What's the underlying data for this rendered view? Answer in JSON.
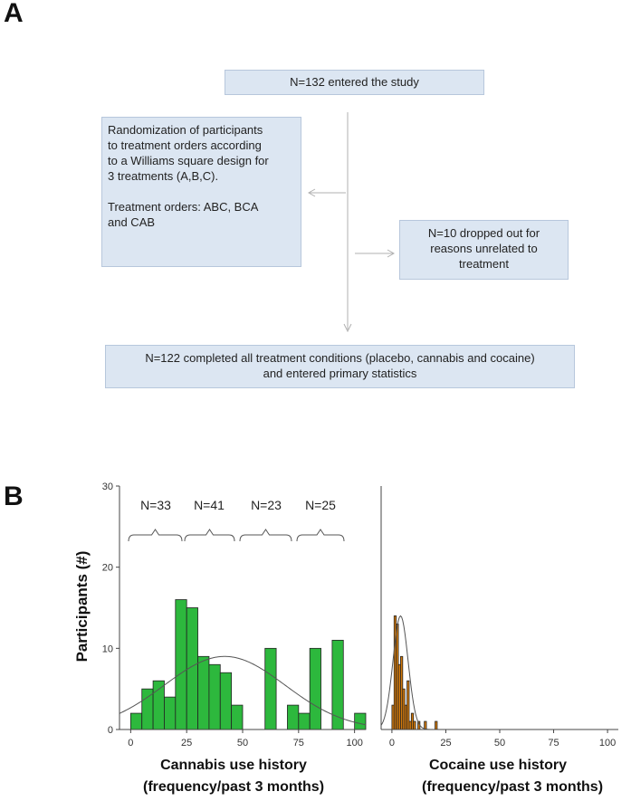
{
  "panel_a": {
    "label": "A",
    "entered": "N=132 entered the study",
    "randomization_line1": "Randomization of participants",
    "randomization_line2": "to treatment orders according",
    "randomization_line3": "to a Williams square design for",
    "randomization_line4": "3 treatments (A,B,C).",
    "orders_line1": "Treatment orders: ABC, BCA",
    "orders_line2": "and CAB",
    "dropout_line1": "N=10 dropped out for",
    "dropout_line2": "reasons unrelated to",
    "dropout_line3": "treatment",
    "completed_line1": "N=122 completed all treatment conditions (placebo, cannabis and cocaine)",
    "completed_line2": "and entered primary statistics"
  },
  "panel_b": {
    "label": "B",
    "ylabel": "Participants (#)",
    "bar_color_cannabis": "#2db83d",
    "bar_color_cocaine": "#d47a0b",
    "brackets": [
      "N=33",
      "N=41",
      "N=23",
      "N=25"
    ]
  },
  "chart_data": [
    {
      "type": "bar",
      "title": "",
      "xlabel_line1": "Cannabis use history",
      "xlabel_line2": "(frequency/past 3 months)",
      "ylabel": "Participants (#)",
      "xlim": [
        -5,
        105
      ],
      "ylim": [
        0,
        30
      ],
      "xticks": [
        0,
        25,
        50,
        75,
        100
      ],
      "yticks": [
        0,
        10,
        20,
        30
      ],
      "bin_width": 5,
      "bins": [
        {
          "x": 0,
          "value": 2
        },
        {
          "x": 5,
          "value": 5
        },
        {
          "x": 10,
          "value": 6
        },
        {
          "x": 15,
          "value": 4
        },
        {
          "x": 20,
          "value": 16
        },
        {
          "x": 25,
          "value": 15
        },
        {
          "x": 30,
          "value": 9
        },
        {
          "x": 35,
          "value": 8
        },
        {
          "x": 40,
          "value": 7
        },
        {
          "x": 45,
          "value": 3
        },
        {
          "x": 60,
          "value": 10
        },
        {
          "x": 70,
          "value": 3
        },
        {
          "x": 75,
          "value": 2
        },
        {
          "x": 80,
          "value": 10
        },
        {
          "x": 90,
          "value": 11
        },
        {
          "x": 100,
          "value": 2
        }
      ],
      "normal_curve": {
        "mean": 42,
        "sd": 27,
        "peak": 9
      }
    },
    {
      "type": "bar",
      "title": "",
      "xlabel_line1": "Cocaine use history",
      "xlabel_line2": "(frequency/past 3 months)",
      "xlim": [
        -5,
        105
      ],
      "ylim": [
        0,
        30
      ],
      "xticks": [
        0,
        25,
        50,
        75,
        100
      ],
      "bin_width": 1,
      "bins": [
        {
          "x": 0,
          "value": 3
        },
        {
          "x": 1,
          "value": 14
        },
        {
          "x": 2,
          "value": 13
        },
        {
          "x": 3,
          "value": 8
        },
        {
          "x": 4,
          "value": 9
        },
        {
          "x": 5,
          "value": 5
        },
        {
          "x": 6,
          "value": 3
        },
        {
          "x": 7,
          "value": 6
        },
        {
          "x": 8,
          "value": 1
        },
        {
          "x": 9,
          "value": 2
        },
        {
          "x": 10,
          "value": 1
        },
        {
          "x": 12,
          "value": 1
        },
        {
          "x": 15,
          "value": 1
        },
        {
          "x": 20,
          "value": 1
        }
      ],
      "normal_curve": {
        "mean": 4,
        "sd": 3.5,
        "peak": 14
      }
    }
  ]
}
